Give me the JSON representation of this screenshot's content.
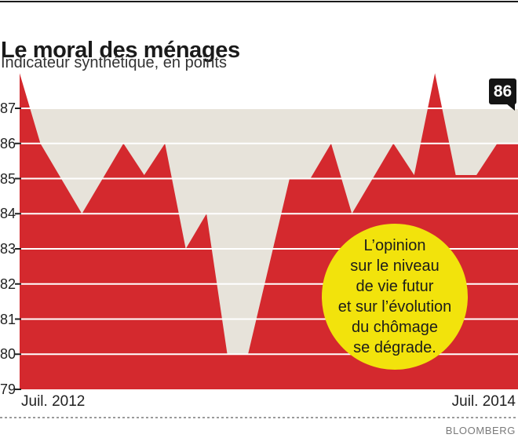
{
  "header": {
    "title": "Le moral des ménages",
    "subtitle": "Indicateur synthétique, en points"
  },
  "chart_data": {
    "type": "area",
    "title": "Le moral des ménages",
    "subtitle": "Indicateur synthétique, en points",
    "x_axis": {
      "start_label": "Juil. 2012",
      "end_label": "Juil. 2014",
      "points": 25
    },
    "ylim": [
      79,
      88
    ],
    "yticks": [
      87,
      86,
      85,
      84,
      83,
      82,
      81,
      80,
      79
    ],
    "values": [
      88,
      86,
      85,
      84,
      85,
      86,
      85.1,
      86,
      83,
      84,
      80,
      80,
      82.5,
      85,
      85,
      86,
      84,
      85,
      86,
      85.1,
      88,
      85.1,
      85.1,
      86,
      86
    ],
    "last_value_badge": "86",
    "annotation": {
      "lines": [
        "L’opinion",
        "sur le niveau",
        "de vie futur",
        "et sur l’évolution",
        "du chômage",
        "se dégrade."
      ]
    },
    "colors": {
      "area": "#d4292e",
      "plot_background": "#e7e3da",
      "gridline": "#ffffff",
      "tick": "#222222",
      "annotation_circle": "#f2e30c",
      "badge": "#141414"
    }
  },
  "footer": {
    "source": "BLOOMBERG"
  }
}
